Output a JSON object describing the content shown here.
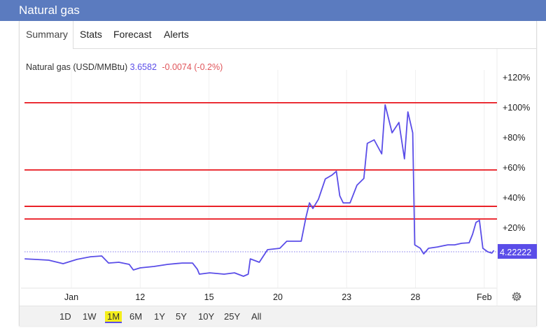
{
  "header": {
    "title": "Natural gas"
  },
  "tabs": [
    {
      "label": "Summary",
      "active": true
    },
    {
      "label": "Stats"
    },
    {
      "label": "Forecast"
    },
    {
      "label": "Alerts"
    }
  ],
  "quote": {
    "name": "Natural gas (USD/MMBtu)",
    "price": "3.6582",
    "change": "-0.0074 (-0.2%)"
  },
  "ranges": [
    {
      "label": "1D"
    },
    {
      "label": "1W"
    },
    {
      "label": "1M",
      "selected": true
    },
    {
      "label": "6M"
    },
    {
      "label": "1Y"
    },
    {
      "label": "5Y"
    },
    {
      "label": "10Y"
    },
    {
      "label": "25Y"
    },
    {
      "label": "All"
    }
  ],
  "settings_icon": "gear-icon",
  "colors": {
    "header": "#5b7bbf",
    "series": "#5a4de8",
    "levels": "#e8141c",
    "down": "#e0555a"
  },
  "chart_data": {
    "type": "line",
    "ylabel": "",
    "xlabel": "",
    "y_axis_position": "right",
    "ylim": [
      -20,
      125
    ],
    "y_ticks": [
      {
        "v": 120,
        "label": "+120%"
      },
      {
        "v": 100,
        "label": "+100%"
      },
      {
        "v": 80,
        "label": "+80%"
      },
      {
        "v": 60,
        "label": "+60%"
      },
      {
        "v": 40,
        "label": "+40%"
      },
      {
        "v": 20,
        "label": "+20%"
      }
    ],
    "x_ticks": [
      "Jan",
      "12",
      "15",
      "20",
      "23",
      "28",
      "Feb"
    ],
    "current_label": "4.22222",
    "current_value": 4.2,
    "horizontal_levels": [
      103.3,
      58.6,
      34.4,
      26.0
    ],
    "series": [
      {
        "points": [
          [
            -0.68,
            -0.5
          ],
          [
            -0.53,
            -0.9
          ],
          [
            -0.33,
            -1.4
          ],
          [
            -0.12,
            -3.7
          ],
          [
            0.08,
            -0.9
          ],
          [
            0.28,
            0.9
          ],
          [
            0.44,
            1.4
          ],
          [
            0.54,
            -3.3
          ],
          [
            0.69,
            -2.8
          ],
          [
            0.84,
            -4.2
          ],
          [
            0.9,
            -7.9
          ],
          [
            1.0,
            -6.5
          ],
          [
            1.2,
            -5.6
          ],
          [
            1.4,
            -4.2
          ],
          [
            1.61,
            -3.3
          ],
          [
            1.76,
            -3.3
          ],
          [
            1.83,
            -7.4
          ],
          [
            1.86,
            -10.7
          ],
          [
            2.01,
            -9.8
          ],
          [
            2.22,
            -10.7
          ],
          [
            2.37,
            -9.8
          ],
          [
            2.5,
            -12.1
          ],
          [
            2.57,
            -10.7
          ],
          [
            2.6,
            -0.5
          ],
          [
            2.73,
            -2.8
          ],
          [
            2.85,
            5.6
          ],
          [
            3.03,
            6.5
          ],
          [
            3.13,
            11.2
          ],
          [
            3.34,
            11.2
          ],
          [
            3.41,
            27.4
          ],
          [
            3.46,
            36.7
          ],
          [
            3.51,
            33.0
          ],
          [
            3.59,
            39.1
          ],
          [
            3.69,
            52.6
          ],
          [
            3.79,
            55.3
          ],
          [
            3.85,
            57.7
          ],
          [
            3.9,
            41.4
          ],
          [
            3.95,
            36.7
          ],
          [
            4.05,
            36.7
          ],
          [
            4.15,
            48.4
          ],
          [
            4.25,
            53.0
          ],
          [
            4.3,
            76.3
          ],
          [
            4.4,
            78.6
          ],
          [
            4.51,
            69.3
          ],
          [
            4.56,
            101.9
          ],
          [
            4.66,
            83.3
          ],
          [
            4.76,
            90.2
          ],
          [
            4.84,
            66.0
          ],
          [
            4.89,
            97.2
          ],
          [
            4.96,
            83.3
          ],
          [
            4.99,
            8.8
          ],
          [
            5.07,
            6.5
          ],
          [
            5.12,
            2.8
          ],
          [
            5.19,
            6.5
          ],
          [
            5.32,
            7.4
          ],
          [
            5.47,
            8.8
          ],
          [
            5.57,
            8.8
          ],
          [
            5.67,
            9.8
          ],
          [
            5.78,
            10.2
          ],
          [
            5.83,
            15.8
          ],
          [
            5.88,
            23.7
          ],
          [
            5.93,
            25.1
          ],
          [
            5.98,
            6.5
          ],
          [
            6.05,
            4.2
          ],
          [
            6.11,
            3.3
          ],
          [
            6.14,
            5.1
          ]
        ]
      }
    ]
  }
}
